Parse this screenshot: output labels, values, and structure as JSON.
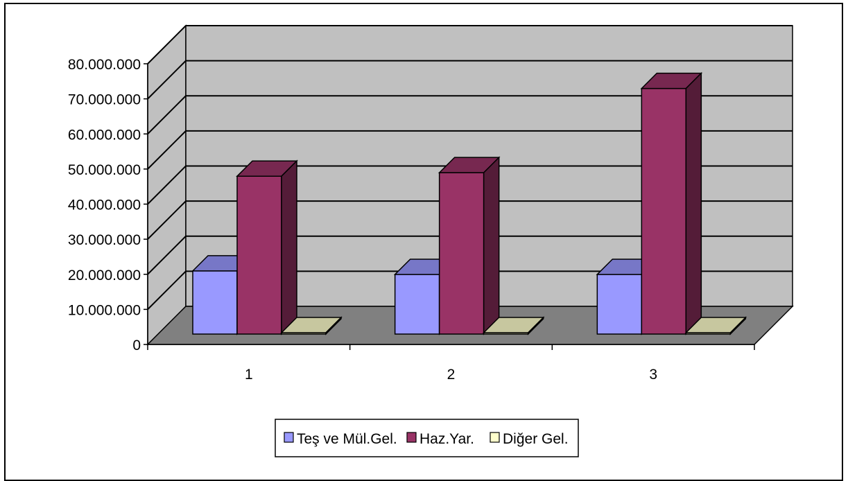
{
  "chart_data": {
    "type": "bar",
    "style": "3d-clustered-column",
    "categories": [
      "1",
      "2",
      "3"
    ],
    "series": [
      {
        "name": "Teş ve Mül.Gel.",
        "values": [
          18000000,
          17000000,
          17000000
        ],
        "color": "#9999ff"
      },
      {
        "name": "Haz.Yar.",
        "values": [
          45000000,
          46000000,
          70000000
        ],
        "color": "#993366"
      },
      {
        "name": "Diğer Gel.",
        "values": [
          300000,
          300000,
          200000
        ],
        "color": "#ffffcc"
      }
    ],
    "yticks": [
      "0",
      "10.000.000",
      "20.000.000",
      "30.000.000",
      "40.000.000",
      "50.000.000",
      "60.000.000",
      "70.000.000",
      "80.000.000"
    ],
    "ylim": [
      0,
      80000000
    ],
    "title": "",
    "xlabel": "",
    "ylabel": "",
    "grid": true,
    "legend": "bottom",
    "colors": {
      "back_wall": "#c0c0c0",
      "floor": "#808080",
      "plot_area": "#ffffff"
    }
  }
}
